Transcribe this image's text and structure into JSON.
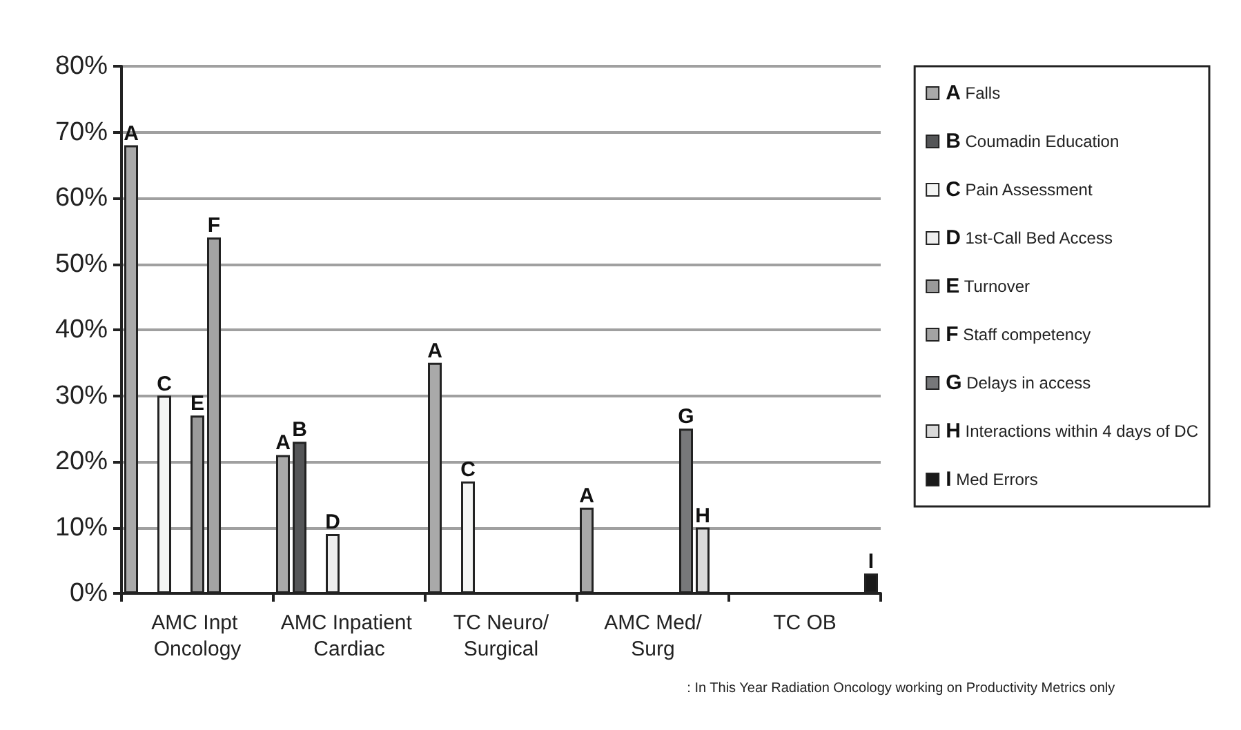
{
  "chart_data": {
    "type": "bar",
    "categories": [
      "AMC Inpt Oncology",
      "AMC Inpatient Cardiac",
      "TC Neuro/Surgical",
      "AMC Med/Surg",
      "TC OB"
    ],
    "series": [
      {
        "name": "Falls",
        "color": "#a9a9a9",
        "values": [
          68,
          21,
          35,
          13,
          null
        ],
        "value_labels": [
          "A",
          "A",
          "A",
          "A",
          null
        ]
      },
      {
        "name": "Coumadin Education",
        "color": "#545557",
        "values": [
          null,
          23,
          null,
          null,
          null
        ],
        "value_labels": [
          null,
          "B",
          null,
          null,
          null
        ]
      },
      {
        "name": "Pain Assessment",
        "color": "#f4f5f4",
        "values": [
          30,
          null,
          17,
          null,
          null
        ],
        "value_labels": [
          "C",
          null,
          "C",
          null,
          null
        ]
      },
      {
        "name": "1st-Call Bed Access",
        "color": "#eeeeee",
        "values": [
          null,
          9,
          null,
          null,
          null
        ],
        "value_labels": [
          null,
          "D",
          null,
          null,
          null
        ]
      },
      {
        "name": "Turnover",
        "color": "#9a9a9a",
        "values": [
          27,
          null,
          null,
          null,
          null
        ],
        "value_labels": [
          "E",
          null,
          null,
          null,
          null
        ]
      },
      {
        "name": "Staff competency",
        "color": "#a3a3a3",
        "values": [
          54,
          null,
          null,
          null,
          null
        ],
        "value_labels": [
          "F",
          null,
          null,
          null,
          null
        ]
      },
      {
        "name": "Delays in access",
        "color": "#77787a",
        "values": [
          null,
          null,
          null,
          25,
          null
        ],
        "value_labels": [
          null,
          null,
          null,
          "G",
          null
        ]
      },
      {
        "name": "Interactions within 4 days of DC",
        "color": "#d9d9d9",
        "values": [
          null,
          null,
          null,
          10,
          null
        ],
        "value_labels": [
          null,
          null,
          null,
          "H",
          null
        ]
      },
      {
        "name": "Med Errors",
        "color": "#1a1a1a",
        "values": [
          null,
          null,
          null,
          null,
          3
        ],
        "value_labels": [
          null,
          null,
          null,
          null,
          "I"
        ]
      }
    ],
    "ylim": [
      0,
      80
    ],
    "yticks": [
      {
        "value": 0,
        "label": "0%"
      },
      {
        "value": 10,
        "label": "10%"
      },
      {
        "value": 20,
        "label": "20%"
      },
      {
        "value": 30,
        "label": "30%"
      },
      {
        "value": 40,
        "label": "40%"
      },
      {
        "value": 50,
        "label": "50%"
      },
      {
        "value": 60,
        "label": "60%"
      },
      {
        "value": 70,
        "label": "70%"
      },
      {
        "value": 80,
        "label": "80%"
      }
    ],
    "grid": "y",
    "legend": "right",
    "annotations": [
      ": In This Year Radiation Oncology working on Productivity Metrics only"
    ]
  }
}
